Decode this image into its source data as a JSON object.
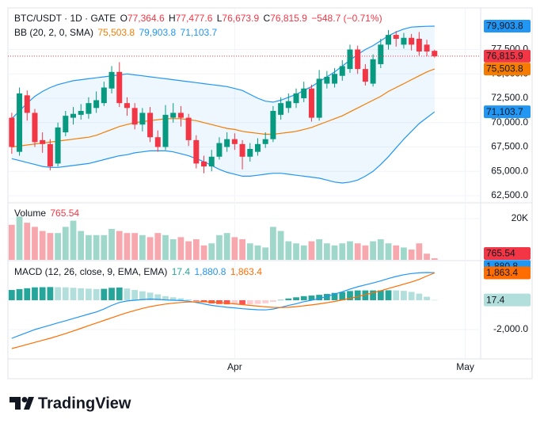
{
  "header": {
    "symbol": "BTC/USDT · 1D · GATE",
    "fields": [
      {
        "key": "O",
        "label": "77,364.6"
      },
      {
        "key": "H",
        "label": "77,477.6"
      },
      {
        "key": "L",
        "label": "76,673.9"
      },
      {
        "key": "C",
        "label": "76,815.9"
      }
    ],
    "change": "−548.7 (−0.71%)"
  },
  "branding": "TradingView",
  "chart_data": [
    {
      "type": "candlestick",
      "up_color": "#089981",
      "down_color": "#f23645",
      "open": [
        70500,
        67000,
        72800,
        71000,
        68200,
        67800,
        65800,
        69000,
        70500,
        70800,
        70900,
        71500,
        72000,
        73500,
        75200,
        72000,
        71500,
        69800,
        71000,
        68500,
        67500,
        70500,
        71000,
        70500,
        68200,
        66000,
        65500,
        66500,
        67500,
        68300,
        67800,
        66500,
        67000,
        67800,
        68300,
        70800,
        71500,
        72000,
        72500,
        73500,
        70500,
        74000,
        74000,
        74800,
        75500,
        77500,
        75500,
        74000,
        76000,
        78000,
        79000,
        78000,
        78700,
        78600,
        78000,
        77364.6
      ],
      "high": [
        71000,
        73600,
        73300,
        71400,
        69000,
        68300,
        70000,
        71200,
        71600,
        71900,
        72600,
        73200,
        74200,
        75800,
        76200,
        72600,
        72000,
        71500,
        71600,
        69200,
        71800,
        72000,
        71700,
        70900,
        68700,
        66600,
        67200,
        68500,
        69000,
        68900,
        68200,
        67900,
        68400,
        69000,
        71700,
        72600,
        73000,
        73500,
        74200,
        73900,
        75400,
        75300,
        75600,
        76400,
        78000,
        77900,
        76000,
        77000,
        78600,
        79500,
        79400,
        79200,
        79100,
        79300,
        78500,
        77477.6
      ],
      "low": [
        66800,
        66600,
        70200,
        67500,
        66900,
        65100,
        65500,
        68600,
        69800,
        70300,
        70400,
        71000,
        71700,
        73000,
        71600,
        70700,
        69300,
        69100,
        68000,
        67000,
        67200,
        70000,
        69600,
        67600,
        65300,
        64800,
        65000,
        66200,
        67000,
        67200,
        65200,
        66000,
        66600,
        67400,
        68000,
        70300,
        71000,
        71500,
        72100,
        70100,
        70200,
        73500,
        73600,
        74300,
        75100,
        75000,
        73800,
        73700,
        75600,
        77500,
        77800,
        77600,
        77400,
        76900,
        76800,
        76673.9
      ],
      "close": [
        67500,
        73000,
        71000,
        68000,
        67800,
        65500,
        69500,
        70700,
        70900,
        71200,
        72000,
        72300,
        73600,
        75200,
        72000,
        71500,
        69800,
        71000,
        68500,
        67500,
        70800,
        71000,
        70500,
        68200,
        65800,
        65500,
        66500,
        67900,
        68300,
        67800,
        66500,
        67300,
        67800,
        68300,
        71200,
        72000,
        72200,
        73000,
        73500,
        70500,
        74500,
        74700,
        75000,
        75800,
        77500,
        75500,
        74200,
        76500,
        78000,
        79000,
        78600,
        78700,
        78000,
        77300,
        77300,
        76815.9
      ],
      "last_label": "76,815.9",
      "last_color": "#f23645",
      "xlim": [
        -0.5,
        61
      ],
      "xticks": [
        {
          "value": 29,
          "label": "Apr"
        },
        {
          "value": 59,
          "label": "May"
        }
      ],
      "ylim": [
        61850,
        81770
      ],
      "yticks": [
        {
          "value": 62500,
          "label": "62,500.0"
        },
        {
          "value": 65000,
          "label": "65,000.0"
        },
        {
          "value": 67500,
          "label": "67,500.0"
        },
        {
          "value": 70000,
          "label": "70,000.0"
        },
        {
          "value": 72500,
          "label": "72,500.0"
        },
        {
          "value": 75000,
          "label": "75,000.0"
        },
        {
          "value": 77500,
          "label": "77,500.0"
        }
      ],
      "grid": true,
      "overlay": {
        "title": "BB (20, 2, 0, SMA)",
        "fill": "rgba(33,150,243,0.08)",
        "series": [
          {
            "color": "#f57c00",
            "label": "75,503.8",
            "values": [
              67500,
              67600,
              67700,
              67800,
              67900,
              68000,
              68100,
              68200,
              68300,
              68400,
              68500,
              68700,
              69000,
              69300,
              69600,
              69800,
              70000,
              70100,
              70200,
              70300,
              70400,
              70400,
              70400,
              70300,
              70200,
              70000,
              69800,
              69600,
              69400,
              69300,
              69100,
              69000,
              68900,
              68800,
              68800,
              68900,
              69000,
              69100,
              69300,
              69500,
              69800,
              70100,
              70400,
              70700,
              71100,
              71500,
              71900,
              72300,
              72700,
              73200,
              73600,
              74000,
              74400,
              74800,
              75200,
              75503.8
            ]
          },
          {
            "color": "#2196f3",
            "label": "79,903.8",
            "values": [
              70400,
              71200,
              72000,
              72700,
              73200,
              73600,
              73900,
              74100,
              74300,
              74400,
              74500,
              74600,
              74700,
              74800,
              74900,
              75000,
              74900,
              74800,
              74700,
              74600,
              74500,
              74400,
              74300,
              74200,
              74100,
              74000,
              73900,
              73800,
              73700,
              73500,
              73300,
              72900,
              72500,
              72200,
              72100,
              72300,
              72600,
              72900,
              73300,
              73700,
              74200,
              74700,
              75200,
              75800,
              76400,
              77000,
              77500,
              77900,
              78400,
              78900,
              79300,
              79600,
              79800,
              79850,
              79880,
              79903.8
            ]
          },
          {
            "color": "#2196f3",
            "label": "71,103.7",
            "values": [
              66300,
              66100,
              65900,
              65700,
              65500,
              65400,
              65400,
              65500,
              65600,
              65700,
              65800,
              66000,
              66200,
              66400,
              66600,
              66700,
              66900,
              67000,
              67100,
              67100,
              67100,
              67000,
              66800,
              66600,
              66300,
              66000,
              65600,
              65200,
              64900,
              64700,
              64500,
              64500,
              64600,
              64700,
              64800,
              64800,
              64700,
              64600,
              64500,
              64400,
              64300,
              64100,
              63900,
              63800,
              63900,
              64100,
              64500,
              65000,
              65700,
              66500,
              67400,
              68300,
              69100,
              69900,
              70500,
              71103.7
            ]
          }
        ]
      }
    },
    {
      "type": "volume",
      "title": "Volume",
      "up_color": "#9fd8cb",
      "down_color": "#f7a8ae",
      "values": [
        17000,
        21000,
        18000,
        16000,
        14000,
        13000,
        13000,
        16000,
        19000,
        14000,
        12000,
        12000,
        12000,
        15000,
        14000,
        13000,
        13000,
        12000,
        11000,
        13000,
        12000,
        10000,
        11000,
        9000,
        10000,
        7000,
        8000,
        12000,
        13000,
        11000,
        10000,
        8000,
        7000,
        6000,
        16000,
        14000,
        9000,
        8000,
        7000,
        9000,
        10000,
        8000,
        7000,
        8000,
        9000,
        8000,
        7000,
        9000,
        10000,
        8000,
        7000,
        6000,
        5000,
        8000,
        3000,
        765.54
      ],
      "last_label": "765.54",
      "last_color": "#f23645",
      "ylim": [
        0,
        26900
      ],
      "yticks": [
        {
          "value": 20000,
          "label": "20K"
        }
      ]
    },
    {
      "type": "macd",
      "title": "MACD (12, 26, close, 9, EMA, EMA)",
      "ylim": [
        -3950,
        2650
      ],
      "yticks": [
        {
          "value": -2000,
          "label": "-2,000.0"
        }
      ],
      "series": [
        {
          "kind": "histogram",
          "color": "#26a69a",
          "colors": {
            "rising": "#26a69a",
            "falling": "#b2dfdb",
            "neg_falling": "#ff5252",
            "neg_rising": "#ffcdd2"
          },
          "label": "17.4",
          "values": [
            700,
            760,
            820,
            880,
            890,
            900,
            890,
            880,
            850,
            820,
            790,
            760,
            780,
            850,
            870,
            800,
            700,
            610,
            520,
            400,
            280,
            200,
            130,
            60,
            -40,
            -140,
            -220,
            -260,
            -280,
            -270,
            -280,
            -270,
            -250,
            -210,
            -110,
            20,
            120,
            200,
            280,
            320,
            370,
            430,
            500,
            560,
            630,
            670,
            670,
            670,
            670,
            680,
            670,
            640,
            570,
            450,
            240,
            17.4
          ]
        },
        {
          "kind": "line",
          "color": "#2196f3",
          "label": "1,880.8",
          "values": [
            -2600,
            -2400,
            -2200,
            -2000,
            -1850,
            -1700,
            -1550,
            -1400,
            -1250,
            -1100,
            -950,
            -800,
            -600,
            -350,
            -150,
            -50,
            0,
            50,
            80,
            60,
            20,
            0,
            -20,
            -60,
            -150,
            -250,
            -350,
            -420,
            -480,
            -520,
            -580,
            -620,
            -650,
            -660,
            -600,
            -480,
            -360,
            -240,
            -100,
            0,
            120,
            260,
            420,
            580,
            760,
            920,
            1050,
            1180,
            1320,
            1480,
            1620,
            1740,
            1820,
            1870,
            1890,
            1880.8
          ]
        },
        {
          "kind": "line",
          "color": "#ff6d00",
          "label": "1,863.4",
          "values": [
            -3300,
            -3160,
            -3020,
            -2880,
            -2740,
            -2600,
            -2440,
            -2280,
            -2100,
            -1920,
            -1740,
            -1560,
            -1380,
            -1200,
            -1020,
            -850,
            -700,
            -560,
            -440,
            -340,
            -260,
            -200,
            -150,
            -120,
            -110,
            -110,
            -130,
            -160,
            -200,
            -250,
            -300,
            -350,
            -400,
            -450,
            -490,
            -500,
            -480,
            -440,
            -380,
            -320,
            -250,
            -170,
            -80,
            20,
            130,
            250,
            380,
            510,
            650,
            800,
            950,
            1100,
            1250,
            1420,
            1650,
            1863.4
          ]
        }
      ]
    }
  ]
}
